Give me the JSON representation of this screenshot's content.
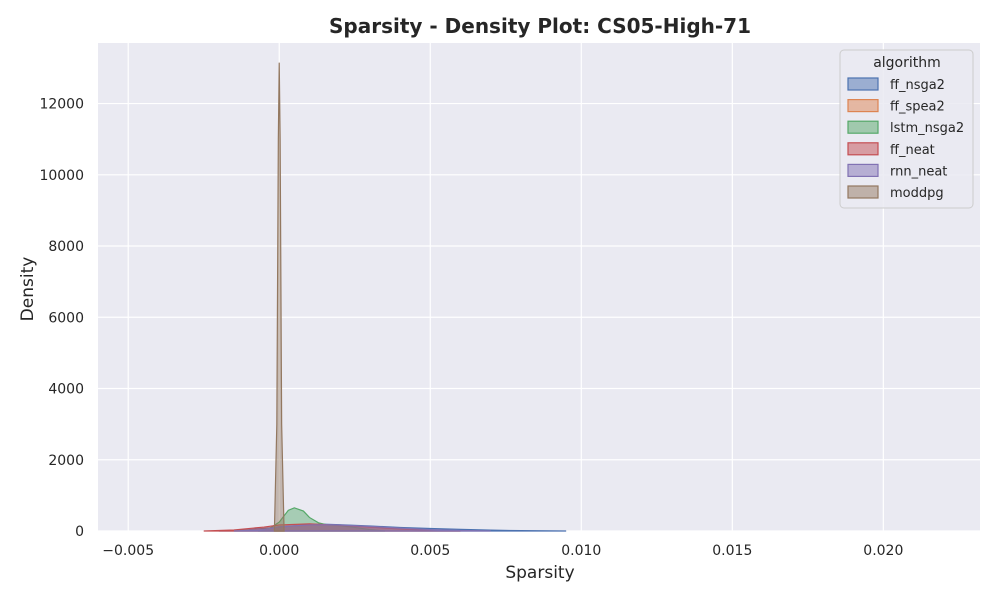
{
  "chart_data": {
    "type": "area",
    "title": "Sparsity - Density Plot: CS05-High-71",
    "xlabel": "Sparsity",
    "ylabel": "Density",
    "xlim": [
      -0.006,
      0.0232
    ],
    "ylim": [
      0,
      13700
    ],
    "xticks": [
      -0.005,
      0.0,
      0.005,
      0.01,
      0.015,
      0.02
    ],
    "xtick_labels": [
      "−0.005",
      "0.000",
      "0.005",
      "0.010",
      "0.015",
      "0.020"
    ],
    "yticks": [
      0,
      2000,
      4000,
      6000,
      8000,
      10000,
      12000
    ],
    "ytick_labels": [
      "0",
      "2000",
      "4000",
      "6000",
      "8000",
      "10000",
      "12000"
    ],
    "grid": true,
    "legend": {
      "title": "algorithm",
      "placement": "top-right"
    },
    "series": [
      {
        "name": "ff_nsga2",
        "color": "#4c72b0",
        "points": [
          [
            -0.002,
            0
          ],
          [
            -0.001,
            40
          ],
          [
            0.0,
            110
          ],
          [
            0.001,
            180
          ],
          [
            0.0015,
            190
          ],
          [
            0.002,
            175
          ],
          [
            0.003,
            140
          ],
          [
            0.004,
            100
          ],
          [
            0.005,
            70
          ],
          [
            0.006,
            45
          ],
          [
            0.007,
            25
          ],
          [
            0.008,
            10
          ],
          [
            0.009,
            3
          ],
          [
            0.0095,
            0
          ]
        ]
      },
      {
        "name": "ff_spea2",
        "color": "#dd8452",
        "points": [
          [
            -0.0015,
            0
          ],
          [
            -0.0005,
            50
          ],
          [
            0.0,
            120
          ],
          [
            0.001,
            160
          ],
          [
            0.002,
            150
          ],
          [
            0.003,
            110
          ],
          [
            0.004,
            60
          ],
          [
            0.005,
            25
          ],
          [
            0.006,
            0
          ]
        ]
      },
      {
        "name": "lstm_nsga2",
        "color": "#55a868",
        "points": [
          [
            -0.0007,
            0
          ],
          [
            -0.0003,
            80
          ],
          [
            0.0,
            250
          ],
          [
            0.0003,
            580
          ],
          [
            0.0005,
            650
          ],
          [
            0.0008,
            560
          ],
          [
            0.001,
            380
          ],
          [
            0.0013,
            230
          ],
          [
            0.0016,
            170
          ],
          [
            0.002,
            150
          ],
          [
            0.0025,
            100
          ],
          [
            0.003,
            40
          ],
          [
            0.0035,
            0
          ]
        ]
      },
      {
        "name": "ff_neat",
        "color": "#c44e52",
        "points": [
          [
            -0.0025,
            0
          ],
          [
            -0.0015,
            30
          ],
          [
            -0.0005,
            110
          ],
          [
            0.0,
            170
          ],
          [
            0.001,
            200
          ],
          [
            0.002,
            160
          ],
          [
            0.003,
            110
          ],
          [
            0.004,
            60
          ],
          [
            0.005,
            25
          ],
          [
            0.006,
            0
          ]
        ]
      },
      {
        "name": "rnn_neat",
        "color": "#8172b3",
        "points": [
          [
            -0.0015,
            0
          ],
          [
            -0.0005,
            40
          ],
          [
            0.0,
            120
          ],
          [
            0.001,
            170
          ],
          [
            0.0018,
            175
          ],
          [
            0.003,
            130
          ],
          [
            0.004,
            80
          ],
          [
            0.005,
            40
          ],
          [
            0.006,
            15
          ],
          [
            0.007,
            0
          ]
        ]
      },
      {
        "name": "moddpg",
        "color": "#937860",
        "points": [
          [
            -0.00016,
            0
          ],
          [
            -8e-05,
            3000
          ],
          [
            -3e-05,
            11000
          ],
          [
            0.0,
            13150
          ],
          [
            3e-05,
            11000
          ],
          [
            8e-05,
            3000
          ],
          [
            0.00016,
            0
          ]
        ]
      }
    ]
  }
}
